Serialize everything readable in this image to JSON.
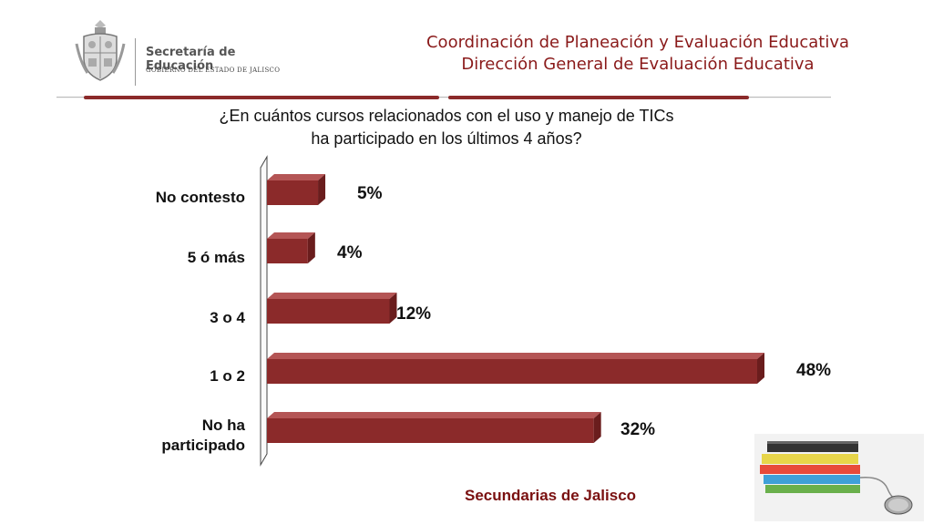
{
  "header": {
    "logo_title": "Secretaría de Educación",
    "logo_subtitle": "GOBIERNO DEL ESTADO DE JALISCO",
    "line1": "Coordinación de Planeación y Evaluación Educativa",
    "line2": "Dirección General de Evaluación Educativa"
  },
  "chart_data": {
    "type": "bar",
    "orientation": "horizontal",
    "title_line1": "¿En cuántos cursos relacionados con el uso y manejo de TICs",
    "title_line2": "ha participado en los últimos 4 años?",
    "categories": [
      "No contesto",
      "5 ó más",
      "3 o 4",
      "1 o 2",
      "No ha\nparticipado"
    ],
    "values": [
      5,
      4,
      12,
      48,
      32
    ],
    "value_labels": [
      "5%",
      "4%",
      "12%",
      "48%",
      "32%"
    ],
    "unit": "%",
    "xlim": [
      0,
      50
    ],
    "bar_color": "#8b2a2a",
    "grid": false,
    "legend": "none"
  },
  "footer": {
    "source": "Secundarias de Jalisco"
  },
  "icons": {
    "shield": "coat-of-arms-icon",
    "books": "books-and-mouse-icon"
  }
}
